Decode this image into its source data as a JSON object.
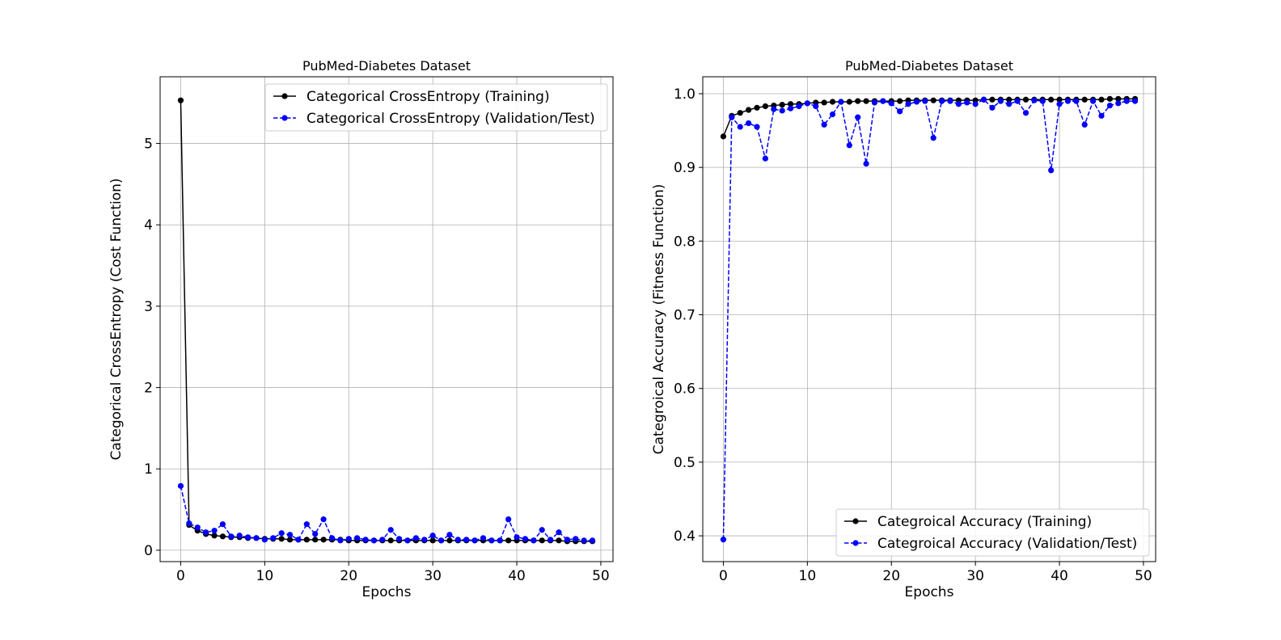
{
  "chart_data": [
    {
      "type": "line",
      "title": "PubMed-Diabetes Dataset",
      "xlabel": "Epochs",
      "ylabel": "Categorical CrossEntropy (Cost Function)",
      "xlim": [
        -2.45,
        51.45
      ],
      "ylim": [
        -0.14,
        5.82
      ],
      "xticks": [
        0,
        10,
        20,
        30,
        40,
        50
      ],
      "yticks": [
        0,
        1,
        2,
        3,
        4,
        5
      ],
      "grid": true,
      "legend_position": "upper-right",
      "series": [
        {
          "name": "Categorical CrossEntropy (Training)",
          "color": "#000000",
          "style": "solid",
          "x": [
            0,
            1,
            2,
            3,
            4,
            5,
            6,
            7,
            8,
            9,
            10,
            11,
            12,
            13,
            14,
            15,
            16,
            17,
            18,
            19,
            20,
            21,
            22,
            23,
            24,
            25,
            26,
            27,
            28,
            29,
            30,
            31,
            32,
            33,
            34,
            35,
            36,
            37,
            38,
            39,
            40,
            41,
            42,
            43,
            44,
            45,
            46,
            47,
            48,
            49
          ],
          "values": [
            5.53,
            0.31,
            0.24,
            0.2,
            0.18,
            0.17,
            0.16,
            0.16,
            0.15,
            0.15,
            0.14,
            0.14,
            0.14,
            0.13,
            0.13,
            0.13,
            0.13,
            0.13,
            0.13,
            0.13,
            0.12,
            0.12,
            0.12,
            0.12,
            0.12,
            0.12,
            0.12,
            0.12,
            0.12,
            0.12,
            0.12,
            0.12,
            0.12,
            0.12,
            0.12,
            0.12,
            0.12,
            0.12,
            0.12,
            0.12,
            0.12,
            0.12,
            0.12,
            0.12,
            0.12,
            0.12,
            0.11,
            0.11,
            0.11,
            0.11
          ]
        },
        {
          "name": "Categorical CrossEntropy (Validation/Test)",
          "color": "#0000ff",
          "style": "dashed",
          "x": [
            0,
            1,
            2,
            3,
            4,
            5,
            6,
            7,
            8,
            9,
            10,
            11,
            12,
            13,
            14,
            15,
            16,
            17,
            18,
            19,
            20,
            21,
            22,
            23,
            24,
            25,
            26,
            27,
            28,
            29,
            30,
            31,
            32,
            33,
            34,
            35,
            36,
            37,
            38,
            39,
            40,
            41,
            42,
            43,
            44,
            45,
            46,
            47,
            48,
            49
          ],
          "values": [
            0.79,
            0.33,
            0.28,
            0.22,
            0.24,
            0.32,
            0.17,
            0.18,
            0.16,
            0.15,
            0.13,
            0.15,
            0.21,
            0.19,
            0.13,
            0.32,
            0.2,
            0.38,
            0.15,
            0.12,
            0.14,
            0.15,
            0.13,
            0.12,
            0.13,
            0.25,
            0.14,
            0.12,
            0.15,
            0.13,
            0.18,
            0.12,
            0.19,
            0.13,
            0.13,
            0.12,
            0.15,
            0.12,
            0.12,
            0.38,
            0.16,
            0.14,
            0.12,
            0.25,
            0.13,
            0.22,
            0.13,
            0.14,
            0.12,
            0.12
          ]
        }
      ]
    },
    {
      "type": "line",
      "title": "PubMed-Diabetes Dataset",
      "xlabel": "Epochs",
      "ylabel": "Categroical Accuracy (Fitness Function)",
      "xlim": [
        -2.45,
        51.45
      ],
      "ylim": [
        0.365,
        1.023
      ],
      "xticks": [
        0,
        10,
        20,
        30,
        40,
        50
      ],
      "yticks": [
        0.4,
        0.5,
        0.6,
        0.7,
        0.8,
        0.9,
        1.0
      ],
      "ytick_labels": [
        "0.4",
        "0.5",
        "0.6",
        "0.7",
        "0.8",
        "0.9",
        "1.0"
      ],
      "grid": true,
      "legend_position": "lower-right",
      "series": [
        {
          "name": "Categroical Accuracy (Training)",
          "color": "#000000",
          "style": "solid",
          "x": [
            0,
            1,
            2,
            3,
            4,
            5,
            6,
            7,
            8,
            9,
            10,
            11,
            12,
            13,
            14,
            15,
            16,
            17,
            18,
            19,
            20,
            21,
            22,
            23,
            24,
            25,
            26,
            27,
            28,
            29,
            30,
            31,
            32,
            33,
            34,
            35,
            36,
            37,
            38,
            39,
            40,
            41,
            42,
            43,
            44,
            45,
            46,
            47,
            48,
            49
          ],
          "values": [
            0.942,
            0.97,
            0.974,
            0.978,
            0.981,
            0.983,
            0.984,
            0.985,
            0.986,
            0.986,
            0.987,
            0.988,
            0.988,
            0.989,
            0.989,
            0.989,
            0.99,
            0.99,
            0.99,
            0.99,
            0.99,
            0.99,
            0.991,
            0.991,
            0.991,
            0.991,
            0.991,
            0.991,
            0.991,
            0.991,
            0.991,
            0.992,
            0.992,
            0.992,
            0.992,
            0.992,
            0.992,
            0.992,
            0.992,
            0.992,
            0.992,
            0.992,
            0.992,
            0.992,
            0.992,
            0.992,
            0.993,
            0.993,
            0.993,
            0.993
          ]
        },
        {
          "name": "Categroical Accuracy (Validation/Test)",
          "color": "#0000ff",
          "style": "dashed",
          "x": [
            0,
            1,
            2,
            3,
            4,
            5,
            6,
            7,
            8,
            9,
            10,
            11,
            12,
            13,
            14,
            15,
            16,
            17,
            18,
            19,
            20,
            21,
            22,
            23,
            24,
            25,
            26,
            27,
            28,
            29,
            30,
            31,
            32,
            33,
            34,
            35,
            36,
            37,
            38,
            39,
            40,
            41,
            42,
            43,
            44,
            45,
            46,
            47,
            48,
            49
          ],
          "values": [
            0.395,
            0.968,
            0.955,
            0.96,
            0.955,
            0.912,
            0.979,
            0.977,
            0.98,
            0.983,
            0.987,
            0.983,
            0.958,
            0.972,
            0.989,
            0.93,
            0.968,
            0.905,
            0.988,
            0.99,
            0.987,
            0.976,
            0.986,
            0.989,
            0.99,
            0.94,
            0.99,
            0.99,
            0.986,
            0.988,
            0.986,
            0.992,
            0.981,
            0.99,
            0.986,
            0.99,
            0.974,
            0.991,
            0.99,
            0.896,
            0.986,
            0.99,
            0.99,
            0.958,
            0.99,
            0.97,
            0.984,
            0.987,
            0.99,
            0.99
          ]
        }
      ]
    }
  ]
}
